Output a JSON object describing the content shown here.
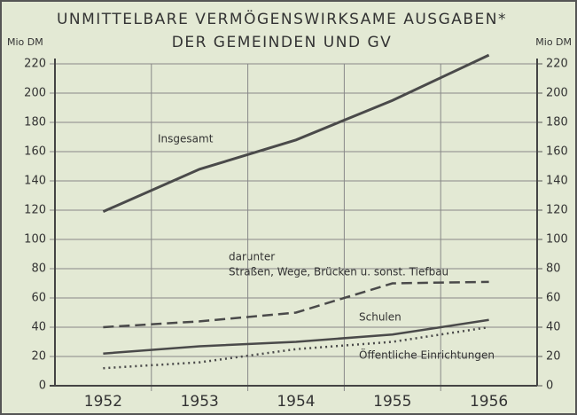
{
  "chart_data": {
    "type": "line",
    "title": "UNMITTELBARE VERMÖGENSWIRKSAME AUSGABEN*",
    "subtitle": "DER GEMEINDEN UND GV",
    "ylabel": "Mio DM",
    "y2label": "Mio DM",
    "annotation": "darunter",
    "categories": [
      "1952",
      "1953",
      "1954",
      "1955",
      "1956"
    ],
    "series": [
      {
        "name": "Insgesamt",
        "color": "#4a4a4a",
        "dash": "solid",
        "values": [
          119,
          148,
          168,
          195,
          226
        ]
      },
      {
        "name": "Straßen, Wege, Brücken u. sonst. Tiefbau",
        "color": "#4a4a4a",
        "dash": "dashed",
        "values": [
          40,
          44,
          50,
          70,
          71
        ]
      },
      {
        "name": "Schulen",
        "color": "#4a4a4a",
        "dash": "solid",
        "values": [
          22,
          27,
          30,
          35,
          45
        ]
      },
      {
        "name": "Öffentliche Einrichtungen",
        "color": "#4a4a4a",
        "dash": "dotted",
        "values": [
          12,
          16,
          25,
          30,
          40
        ]
      }
    ],
    "ylim": [
      0,
      220
    ],
    "yticks": [
      0,
      20,
      40,
      60,
      80,
      100,
      120,
      140,
      160,
      180,
      200,
      220
    ],
    "y2lim": [
      0,
      220
    ],
    "y2ticks": [
      0,
      20,
      40,
      60,
      80,
      100,
      120,
      140,
      160,
      180,
      200,
      220
    ],
    "grid": true
  }
}
